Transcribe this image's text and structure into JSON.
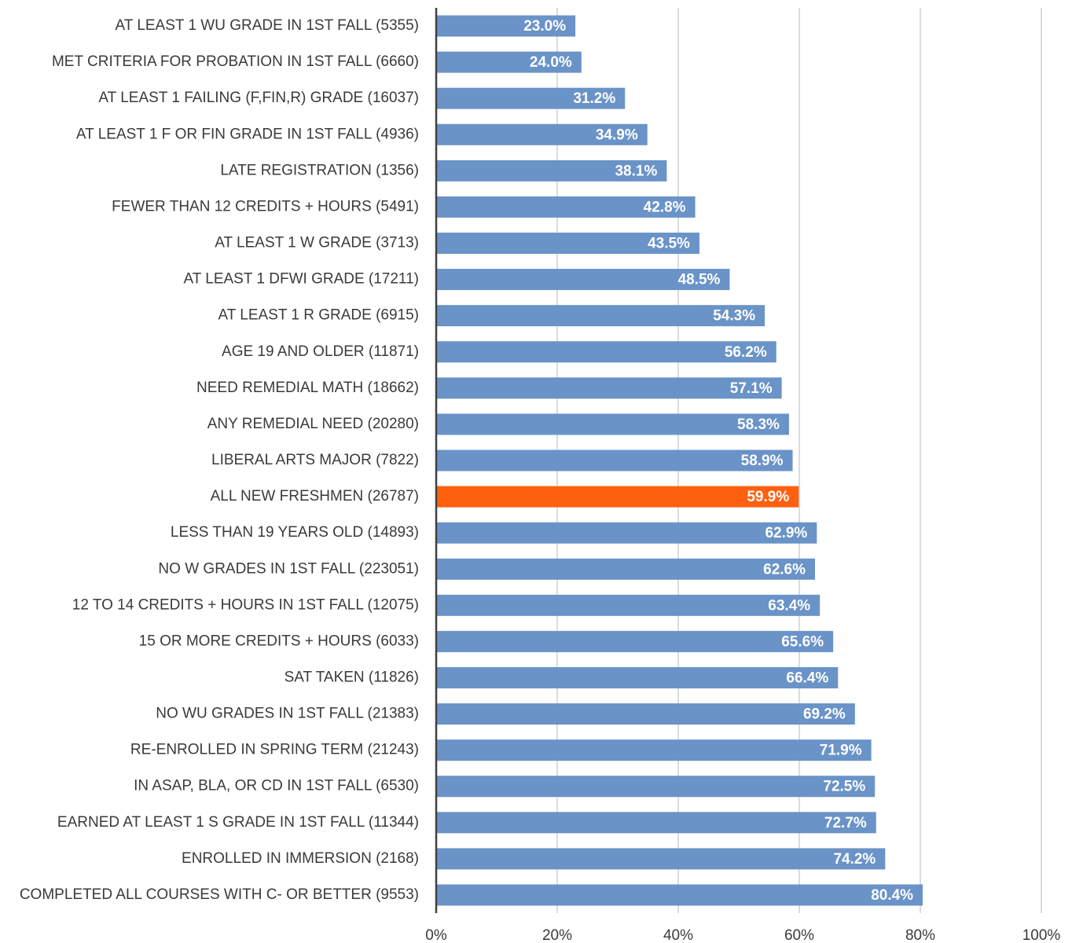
{
  "chart_data": {
    "type": "hbar",
    "categories": [
      "AT LEAST 1 WU GRADE IN 1ST FALL (5355)",
      "MET CRITERIA FOR PROBATION IN 1ST FALL (6660)",
      "AT LEAST 1 FAILING (F,FIN,R) GRADE (16037)",
      "AT LEAST 1 F OR FIN GRADE IN 1ST FALL (4936)",
      "LATE REGISTRATION (1356)",
      "FEWER THAN 12 CREDITS + HOURS (5491)",
      "AT LEAST 1 W GRADE (3713)",
      "AT LEAST 1 DFWI GRADE (17211)",
      "AT LEAST 1 R GRADE (6915)",
      "AGE 19 AND OLDER (11871)",
      "NEED REMEDIAL MATH (18662)",
      "ANY REMEDIAL NEED (20280)",
      "LIBERAL ARTS MAJOR (7822)",
      "ALL NEW FRESHMEN (26787)",
      "LESS THAN 19 YEARS OLD (14893)",
      "NO W GRADES IN 1ST FALL (223051)",
      "12 TO 14 CREDITS + HOURS IN 1ST FALL (12075)",
      "15 OR MORE CREDITS + HOURS (6033)",
      "SAT TAKEN (11826)",
      "NO WU GRADES IN 1ST FALL (21383)",
      "RE-ENROLLED IN SPRING TERM (21243)",
      "IN ASAP, BLA, OR CD IN 1ST FALL (6530)",
      "EARNED AT LEAST 1 S GRADE IN 1ST FALL (11344)",
      "ENROLLED IN IMMERSION (2168)",
      "COMPLETED ALL COURSES WITH C- OR BETTER (9553)"
    ],
    "values": [
      23.0,
      24.0,
      31.2,
      34.9,
      38.1,
      42.8,
      43.5,
      48.5,
      54.3,
      56.2,
      57.1,
      58.3,
      58.9,
      59.9,
      62.9,
      62.6,
      63.4,
      65.6,
      66.4,
      69.2,
      71.9,
      72.5,
      72.7,
      74.2,
      80.4
    ],
    "value_labels": [
      "23.0%",
      "24.0%",
      "31.2%",
      "34.9%",
      "38.1%",
      "42.8%",
      "43.5%",
      "48.5%",
      "54.3%",
      "56.2%",
      "57.1%",
      "58.3%",
      "58.9%",
      "59.9%",
      "62.9%",
      "62.6%",
      "63.4%",
      "65.6%",
      "66.4%",
      "69.2%",
      "71.9%",
      "72.5%",
      "72.7%",
      "74.2%",
      "80.4%"
    ],
    "colors": [
      "#6a93c8",
      "#6a93c8",
      "#6a93c8",
      "#6a93c8",
      "#6a93c8",
      "#6a93c8",
      "#6a93c8",
      "#6a93c8",
      "#6a93c8",
      "#6a93c8",
      "#6a93c8",
      "#6a93c8",
      "#6a93c8",
      "#ff6010",
      "#6a93c8",
      "#6a93c8",
      "#6a93c8",
      "#6a93c8",
      "#6a93c8",
      "#6a93c8",
      "#6a93c8",
      "#6a93c8",
      "#6a93c8",
      "#6a93c8",
      "#6a93c8"
    ],
    "xlim": [
      0,
      100
    ],
    "xticks": [
      {
        "value": 0,
        "label": "0%"
      },
      {
        "value": 20,
        "label": "20%"
      },
      {
        "value": 40,
        "label": "40%"
      },
      {
        "value": 60,
        "label": "60%"
      },
      {
        "value": 80,
        "label": "80%"
      },
      {
        "value": 100,
        "label": "100%"
      }
    ],
    "grid": true
  }
}
